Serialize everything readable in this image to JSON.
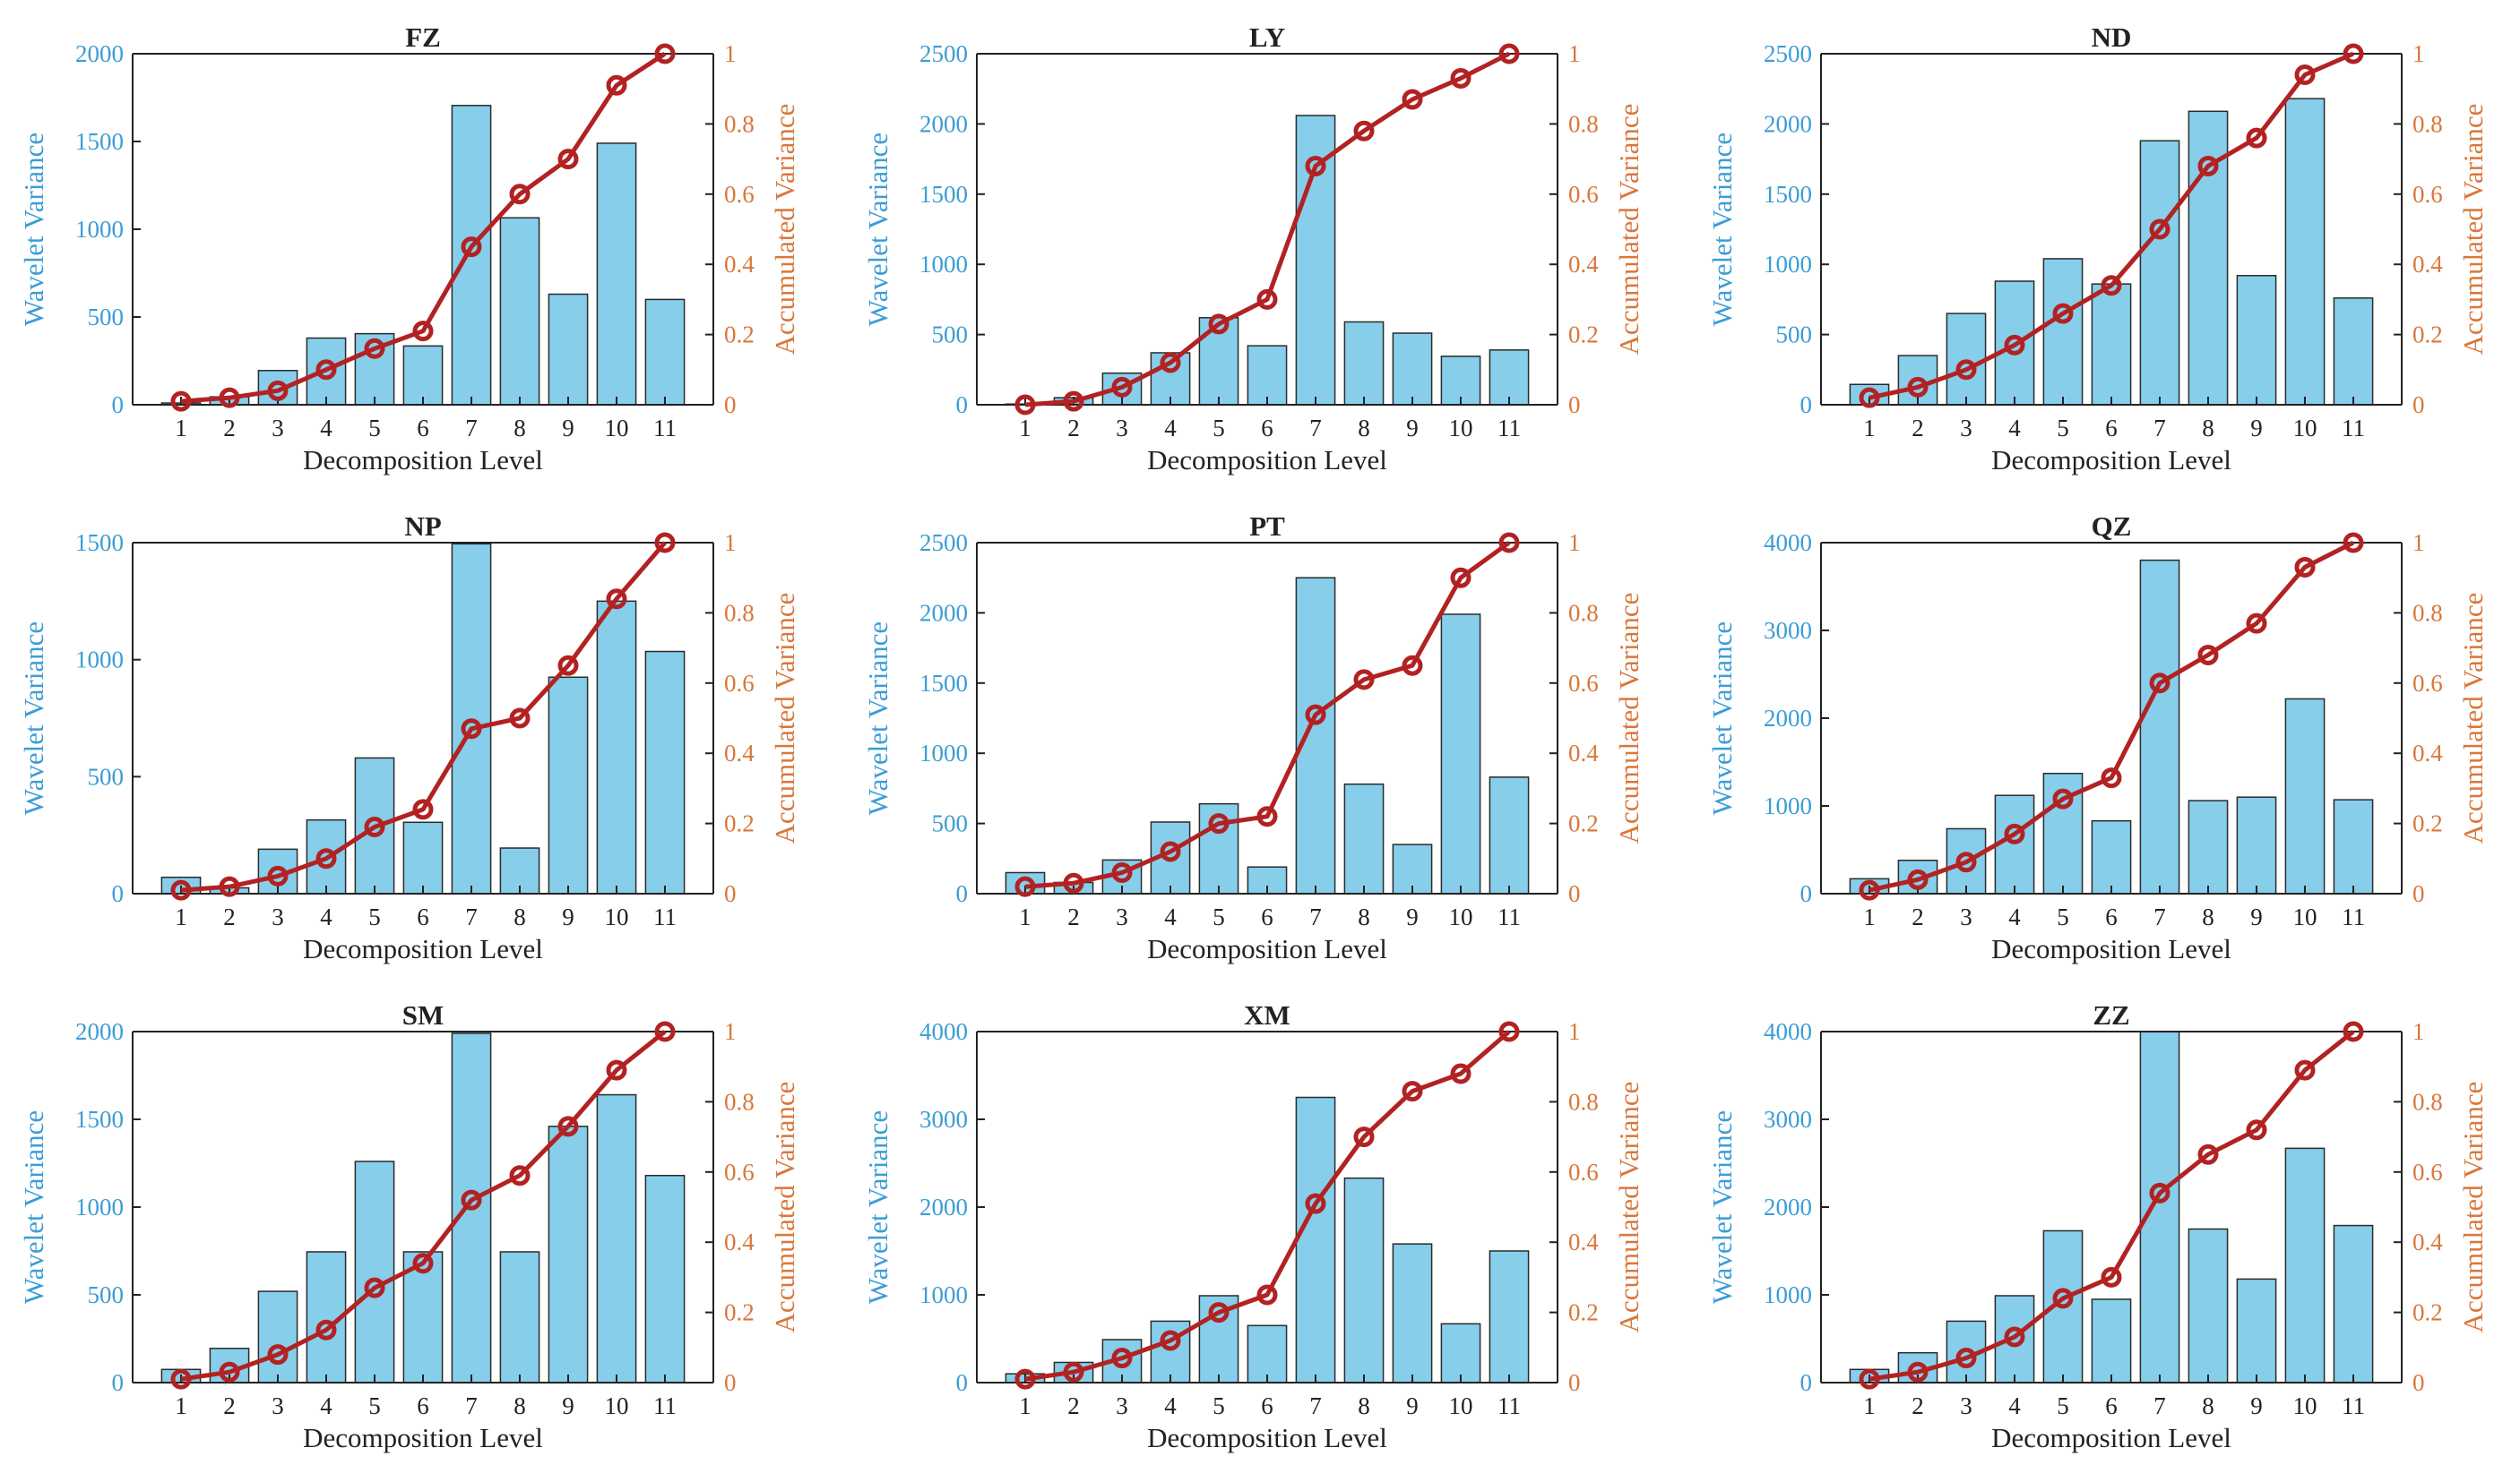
{
  "colors": {
    "bar": "#87CEEB",
    "line": "#B22222",
    "left_axis": "#3B9DD6",
    "right_axis": "#D9773A"
  },
  "chart_data": [
    {
      "type": "bar",
      "title": "FZ",
      "xlabel": "Decomposition Level",
      "ylabel": "Wavelet Variance",
      "y2label": "Accumulated Variance",
      "categories": [
        "1",
        "2",
        "3",
        "4",
        "5",
        "6",
        "7",
        "8",
        "9",
        "10",
        "11"
      ],
      "ylim": [
        0,
        2000
      ],
      "yticks": [
        0,
        500,
        1000,
        1500,
        2000
      ],
      "yticklabels": [
        "0",
        "500",
        "1000",
        "1500",
        "2000"
      ],
      "y2lim": [
        0,
        1
      ],
      "y2ticks": [
        0,
        0.2,
        0.4,
        0.6,
        0.8,
        1
      ],
      "y2ticklabels": [
        "0",
        "0.2",
        "0.4",
        "0.6",
        "0.8",
        "1"
      ],
      "series": [
        {
          "name": "Wavelet Variance",
          "values": [
            10,
            45,
            195,
            380,
            405,
            335,
            1705,
            1065,
            630,
            1490,
            600
          ]
        },
        {
          "name": "Accumulated Variance",
          "values": [
            0.01,
            0.02,
            0.04,
            0.1,
            0.16,
            0.21,
            0.45,
            0.6,
            0.7,
            0.91,
            1.0
          ]
        }
      ]
    },
    {
      "type": "bar",
      "title": "LY",
      "xlabel": "Decomposition Level",
      "ylabel": "Wavelet Variance",
      "y2label": "Accumulated Variance",
      "categories": [
        "1",
        "2",
        "3",
        "4",
        "5",
        "6",
        "7",
        "8",
        "9",
        "10",
        "11"
      ],
      "ylim": [
        0,
        2500
      ],
      "yticks": [
        0,
        500,
        1000,
        1500,
        2000,
        2500
      ],
      "yticklabels": [
        "0",
        "500",
        "1000",
        "1500",
        "2000",
        "2500"
      ],
      "y2lim": [
        0,
        1
      ],
      "y2ticks": [
        0,
        0.2,
        0.4,
        0.6,
        0.8,
        1
      ],
      "y2ticklabels": [
        "0",
        "0.2",
        "0.4",
        "0.6",
        "0.8",
        "1"
      ],
      "series": [
        {
          "name": "Wavelet Variance",
          "values": [
            5,
            50,
            225,
            370,
            620,
            420,
            2060,
            590,
            510,
            345,
            390
          ]
        },
        {
          "name": "Accumulated Variance",
          "values": [
            0.0,
            0.01,
            0.05,
            0.12,
            0.23,
            0.3,
            0.68,
            0.78,
            0.87,
            0.93,
            1.0
          ]
        }
      ]
    },
    {
      "type": "bar",
      "title": "ND",
      "xlabel": "Decomposition Level",
      "ylabel": "Wavelet Variance",
      "y2label": "Accumulated Variance",
      "categories": [
        "1",
        "2",
        "3",
        "4",
        "5",
        "6",
        "7",
        "8",
        "9",
        "10",
        "11"
      ],
      "ylim": [
        0,
        2500
      ],
      "yticks": [
        0,
        500,
        1000,
        1500,
        2000,
        2500
      ],
      "yticklabels": [
        "0",
        "500",
        "1000",
        "1500",
        "2000",
        "2500"
      ],
      "y2lim": [
        0,
        1
      ],
      "y2ticks": [
        0,
        0.2,
        0.4,
        0.6,
        0.8,
        1
      ],
      "y2ticklabels": [
        "0",
        "0.2",
        "0.4",
        "0.6",
        "0.8",
        "1"
      ],
      "series": [
        {
          "name": "Wavelet Variance",
          "values": [
            145,
            350,
            650,
            880,
            1040,
            860,
            1880,
            2090,
            920,
            2180,
            760
          ]
        },
        {
          "name": "Accumulated Variance",
          "values": [
            0.02,
            0.05,
            0.1,
            0.17,
            0.26,
            0.34,
            0.5,
            0.68,
            0.76,
            0.94,
            1.0
          ]
        }
      ]
    },
    {
      "type": "bar",
      "title": "NP",
      "xlabel": "Decomposition Level",
      "ylabel": "Wavelet Variance",
      "y2label": "Accumulated Variance",
      "categories": [
        "1",
        "2",
        "3",
        "4",
        "5",
        "6",
        "7",
        "8",
        "9",
        "10",
        "11"
      ],
      "ylim": [
        0,
        1500
      ],
      "yticks": [
        0,
        500,
        1000,
        1500
      ],
      "yticklabels": [
        "0",
        "500",
        "1000",
        "1500"
      ],
      "y2lim": [
        0,
        1
      ],
      "y2ticks": [
        0,
        0.2,
        0.4,
        0.6,
        0.8,
        1
      ],
      "y2ticklabels": [
        "0",
        "0.2",
        "0.4",
        "0.6",
        "0.8",
        "1"
      ],
      "series": [
        {
          "name": "Wavelet Variance",
          "values": [
            70,
            25,
            190,
            315,
            580,
            305,
            1495,
            195,
            925,
            1250,
            1035
          ]
        },
        {
          "name": "Accumulated Variance",
          "values": [
            0.01,
            0.02,
            0.05,
            0.1,
            0.19,
            0.24,
            0.47,
            0.5,
            0.65,
            0.84,
            1.0
          ]
        }
      ]
    },
    {
      "type": "bar",
      "title": "PT",
      "xlabel": "Decomposition Level",
      "ylabel": "Wavelet Variance",
      "y2label": "Accumulated Variance",
      "categories": [
        "1",
        "2",
        "3",
        "4",
        "5",
        "6",
        "7",
        "8",
        "9",
        "10",
        "11"
      ],
      "ylim": [
        0,
        2500
      ],
      "yticks": [
        0,
        500,
        1000,
        1500,
        2000,
        2500
      ],
      "yticklabels": [
        "0",
        "500",
        "1000",
        "1500",
        "2000",
        "2500"
      ],
      "y2lim": [
        0,
        1
      ],
      "y2ticks": [
        0,
        0.2,
        0.4,
        0.6,
        0.8,
        1
      ],
      "y2ticklabels": [
        "0",
        "0.2",
        "0.4",
        "0.6",
        "0.8",
        "1"
      ],
      "series": [
        {
          "name": "Wavelet Variance",
          "values": [
            150,
            80,
            240,
            510,
            640,
            190,
            2250,
            780,
            350,
            1990,
            830
          ]
        },
        {
          "name": "Accumulated Variance",
          "values": [
            0.02,
            0.03,
            0.06,
            0.12,
            0.2,
            0.22,
            0.51,
            0.61,
            0.65,
            0.9,
            1.0
          ]
        }
      ]
    },
    {
      "type": "bar",
      "title": "QZ",
      "xlabel": "Decomposition Level",
      "ylabel": "Wavelet Variance",
      "y2label": "Accumulated Variance",
      "categories": [
        "1",
        "2",
        "3",
        "4",
        "5",
        "6",
        "7",
        "8",
        "9",
        "10",
        "11"
      ],
      "ylim": [
        0,
        4000
      ],
      "yticks": [
        0,
        1000,
        2000,
        3000,
        4000
      ],
      "yticklabels": [
        "0",
        "1000",
        "2000",
        "3000",
        "4000"
      ],
      "y2lim": [
        0,
        1
      ],
      "y2ticks": [
        0,
        0.2,
        0.4,
        0.6,
        0.8,
        1
      ],
      "y2ticklabels": [
        "0",
        "0.2",
        "0.4",
        "0.6",
        "0.8",
        "1"
      ],
      "series": [
        {
          "name": "Wavelet Variance",
          "values": [
            170,
            380,
            740,
            1120,
            1370,
            830,
            3800,
            1060,
            1100,
            2220,
            1070
          ]
        },
        {
          "name": "Accumulated Variance",
          "values": [
            0.01,
            0.04,
            0.09,
            0.17,
            0.27,
            0.33,
            0.6,
            0.68,
            0.77,
            0.93,
            1.0
          ]
        }
      ]
    },
    {
      "type": "bar",
      "title": "SM",
      "xlabel": "Decomposition Level",
      "ylabel": "Wavelet Variance",
      "y2label": "Accumulated Variance",
      "categories": [
        "1",
        "2",
        "3",
        "4",
        "5",
        "6",
        "7",
        "8",
        "9",
        "10",
        "11"
      ],
      "ylim": [
        0,
        2000
      ],
      "yticks": [
        0,
        500,
        1000,
        1500,
        2000
      ],
      "yticklabels": [
        "0",
        "500",
        "1000",
        "1500",
        "2000"
      ],
      "y2lim": [
        0,
        1
      ],
      "y2ticks": [
        0,
        0.2,
        0.4,
        0.6,
        0.8,
        1
      ],
      "y2ticklabels": [
        "0",
        "0.2",
        "0.4",
        "0.6",
        "0.8",
        "1"
      ],
      "series": [
        {
          "name": "Wavelet Variance",
          "values": [
            75,
            195,
            520,
            745,
            1260,
            745,
            1990,
            745,
            1460,
            1640,
            1180
          ]
        },
        {
          "name": "Accumulated Variance",
          "values": [
            0.01,
            0.03,
            0.08,
            0.15,
            0.27,
            0.34,
            0.52,
            0.59,
            0.73,
            0.89,
            1.0
          ]
        }
      ]
    },
    {
      "type": "bar",
      "title": "XM",
      "xlabel": "Decomposition Level",
      "ylabel": "Wavelet Variance",
      "y2label": "Accumulated Variance",
      "categories": [
        "1",
        "2",
        "3",
        "4",
        "5",
        "6",
        "7",
        "8",
        "9",
        "10",
        "11"
      ],
      "ylim": [
        0,
        4000
      ],
      "yticks": [
        0,
        1000,
        2000,
        3000,
        4000
      ],
      "yticklabels": [
        "0",
        "1000",
        "2000",
        "3000",
        "4000"
      ],
      "y2lim": [
        0,
        1
      ],
      "y2ticks": [
        0,
        0.2,
        0.4,
        0.6,
        0.8,
        1
      ],
      "y2ticklabels": [
        "0",
        "0.2",
        "0.4",
        "0.6",
        "0.8",
        "1"
      ],
      "series": [
        {
          "name": "Wavelet Variance",
          "values": [
            100,
            230,
            490,
            700,
            990,
            650,
            3250,
            2330,
            1580,
            670,
            1500
          ]
        },
        {
          "name": "Accumulated Variance",
          "values": [
            0.01,
            0.03,
            0.07,
            0.12,
            0.2,
            0.25,
            0.51,
            0.7,
            0.83,
            0.88,
            1.0
          ]
        }
      ]
    },
    {
      "type": "bar",
      "title": "ZZ",
      "xlabel": "Decomposition Level",
      "ylabel": "Wavelet Variance",
      "y2label": "Accumulated Variance",
      "categories": [
        "1",
        "2",
        "3",
        "4",
        "5",
        "6",
        "7",
        "8",
        "9",
        "10",
        "11"
      ],
      "ylim": [
        0,
        4000
      ],
      "yticks": [
        0,
        1000,
        2000,
        3000,
        4000
      ],
      "yticklabels": [
        "0",
        "1000",
        "2000",
        "3000",
        "4000"
      ],
      "y2lim": [
        0,
        1
      ],
      "y2ticks": [
        0,
        0.2,
        0.4,
        0.6,
        0.8,
        1
      ],
      "y2ticklabels": [
        "0",
        "0.2",
        "0.4",
        "0.6",
        "0.8",
        "1"
      ],
      "series": [
        {
          "name": "Wavelet Variance",
          "values": [
            150,
            340,
            700,
            990,
            1730,
            950,
            4000,
            1750,
            1180,
            2670,
            1790
          ]
        },
        {
          "name": "Accumulated Variance",
          "values": [
            0.01,
            0.03,
            0.07,
            0.13,
            0.24,
            0.3,
            0.54,
            0.65,
            0.72,
            0.89,
            1.0
          ]
        }
      ]
    }
  ]
}
